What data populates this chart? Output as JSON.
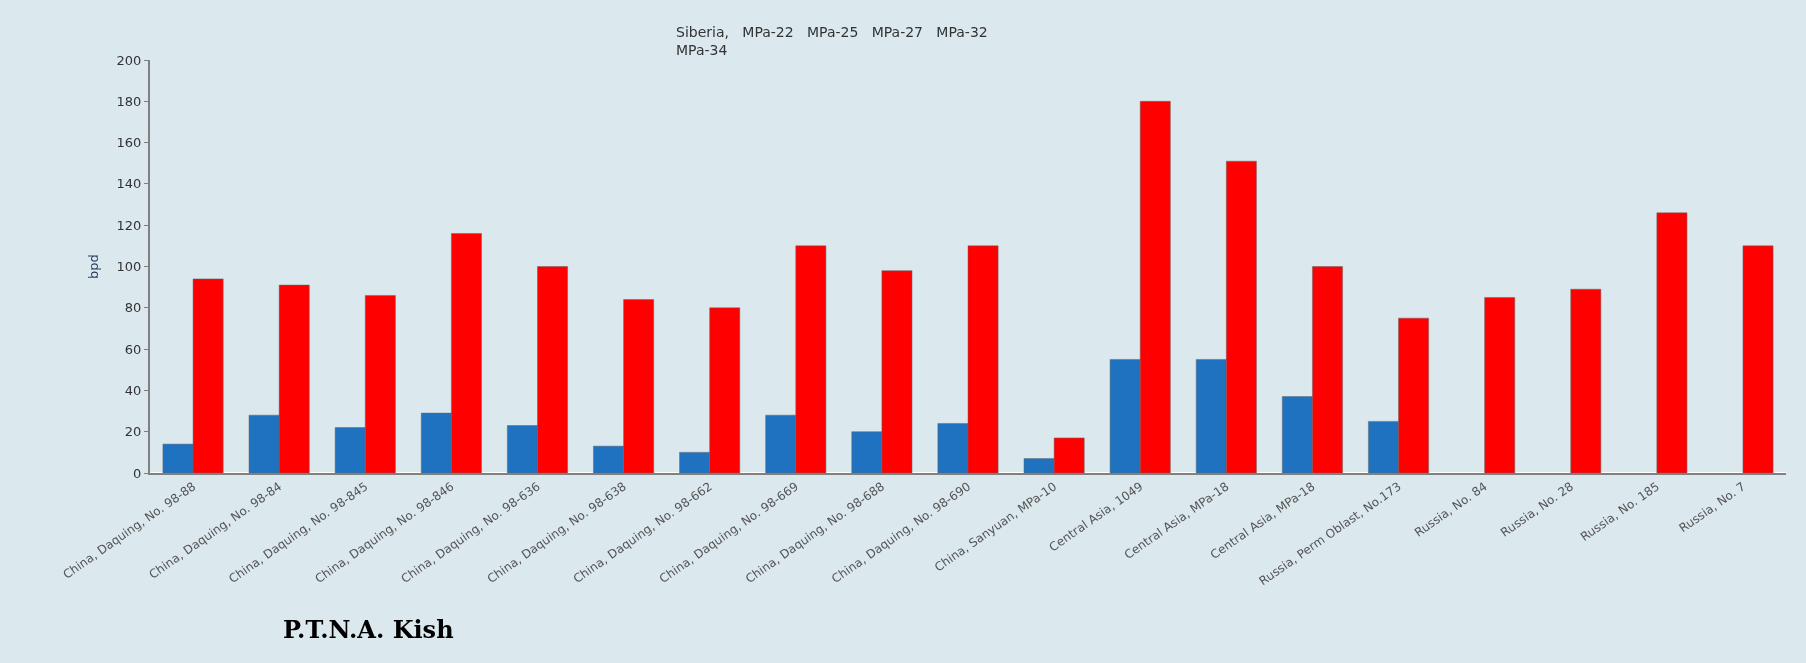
{
  "chart_data": {
    "type": "bar",
    "ylabel": "bpd",
    "categories": [
      "China, Daquing, No. 98-88",
      "China, Daquing, No. 98-84",
      "China, Daquing, No. 98-845",
      "China, Daquing, No. 98-846",
      "China, Daquing, No. 98-636",
      "China, Daquing, No. 98-638",
      "China, Daquing, No. 98-662",
      "China, Daquing, No. 98-669",
      "China, Daquing, No. 98-688",
      "China, Daquing, No. 98-690",
      "China, Sanyuan, MPa-10",
      "Central Asia, 1049",
      "Central Asia, MPa-18",
      "Central Asia, MPa-18",
      "Russia, Perm Oblast, No.173",
      "Russia, No. 84",
      "Russia, No. 28",
      "Russia, No. 185",
      "Russia, No. 7"
    ],
    "series": [
      {
        "color": "#1f72c0",
        "values": [
          14,
          28,
          22,
          29,
          23,
          13,
          10,
          28,
          20,
          24,
          7,
          55,
          55,
          37,
          25,
          null,
          null,
          null,
          null
        ]
      },
      {
        "color": "#ff0000",
        "values": [
          94,
          91,
          86,
          116,
          100,
          84,
          80,
          110,
          98,
          110,
          17,
          180,
          151,
          100,
          75,
          85,
          89,
          126,
          110
        ]
      }
    ],
    "ylim": [
      0,
      200
    ],
    "yticks": [
      0,
      20,
      40,
      60,
      80,
      100,
      120,
      140,
      160,
      180,
      200
    ],
    "grid": false,
    "annotations": [
      "Siberia,   MPa-22   MPa-25   MPa-27   MPa-32\nMPa-34",
      "P.T.N.A. Kish"
    ]
  }
}
